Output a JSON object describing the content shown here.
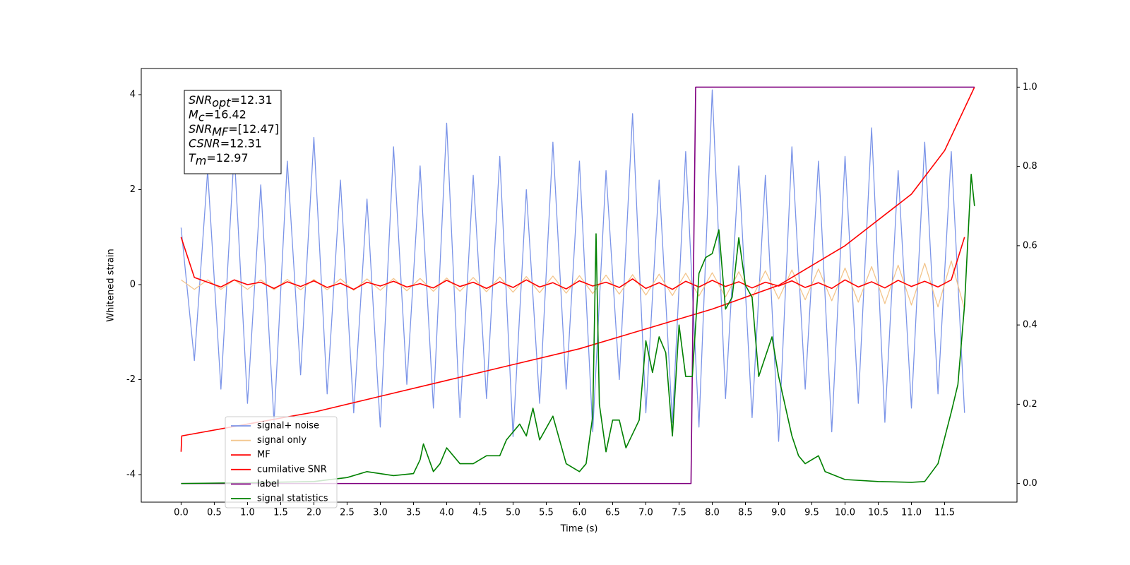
{
  "chart_data": {
    "type": "line",
    "xlabel": "Time (s)",
    "ylabel": "Whitened strain",
    "xlim": [
      -0.6,
      12.59
    ],
    "xticks": [
      {
        "value": 0,
        "label": "0.0"
      },
      0.5,
      {
        "value": 1,
        "label": "1.0"
      },
      1.5,
      {
        "value": 2,
        "label": "2.0"
      },
      2.5,
      {
        "value": 3,
        "label": "3.0"
      },
      3.5,
      {
        "value": 4,
        "label": "4.0"
      },
      4.5,
      {
        "value": 5,
        "label": "5.0"
      },
      5.5,
      {
        "value": 6,
        "label": "6.0"
      },
      6.5,
      {
        "value": 7,
        "label": "7.0"
      },
      7.5,
      {
        "value": 8,
        "label": "8.0"
      },
      8.5,
      {
        "value": 9,
        "label": "9.0"
      },
      9.5,
      {
        "value": 10,
        "label": "10.0"
      },
      10.5,
      {
        "value": 11,
        "label": "11.0"
      },
      11.5
    ],
    "ylim": [
      -4.58,
      4.55
    ],
    "yticks": [
      -4,
      -2,
      0,
      2,
      4
    ],
    "y2lim": [
      -0.047,
      1.047
    ],
    "y2ticks": [
      {
        "value": 0,
        "label": "0.0"
      },
      0.2,
      0.4,
      0.6,
      0.8,
      {
        "value": 1,
        "label": "1.0"
      }
    ],
    "legend_loc": "lower left",
    "annotations": [
      {
        "symbol": "SNR",
        "subscript": "opt",
        "text": "=12.31"
      },
      {
        "symbol": "M",
        "subscript": "c",
        "text": "=16.42"
      },
      {
        "symbol": "SNR",
        "subscript": "MF",
        "text": "=[12.47]"
      },
      {
        "symbol": "CSNR",
        "subscript": null,
        "text": "=12.31"
      },
      {
        "symbol": "T",
        "subscript": "m",
        "text": "=12.97"
      }
    ],
    "x": [
      0,
      0.2,
      0.4,
      0.6,
      0.8,
      1,
      1.2,
      1.4,
      1.6,
      1.8,
      2,
      2.2,
      2.4,
      2.6,
      2.8,
      3,
      3.2,
      3.4,
      3.6,
      3.8,
      4,
      4.2,
      4.4,
      4.6,
      4.8,
      5,
      5.2,
      5.4,
      5.6,
      5.8,
      6,
      6.2,
      6.4,
      6.6,
      6.8,
      7,
      7.2,
      7.4,
      7.6,
      7.8,
      8,
      8.2,
      8.4,
      8.6,
      8.8,
      9,
      9.2,
      9.4,
      9.6,
      9.8,
      10,
      10.2,
      10.4,
      10.6,
      10.8,
      11,
      11.2,
      11.4,
      11.6,
      11.8
    ],
    "series": [
      {
        "name": "signal+ noise",
        "color": "#7b94e8",
        "values": [
          1.2,
          -1.6,
          2.4,
          -2.2,
          2.8,
          -2.5,
          2.1,
          -2.9,
          2.6,
          -1.9,
          3.1,
          -2.3,
          2.2,
          -2.7,
          1.8,
          -3.0,
          2.9,
          -2.1,
          2.5,
          -2.6,
          3.4,
          -2.8,
          2.3,
          -2.4,
          2.7,
          -3.2,
          2.0,
          -2.5,
          3.0,
          -2.2,
          2.6,
          -3.1,
          2.4,
          -2.0,
          3.6,
          -2.7,
          2.2,
          -2.9,
          2.8,
          -3.0,
          4.1,
          -2.4,
          2.5,
          -2.8,
          2.3,
          -3.3,
          2.9,
          -2.2,
          2.6,
          -3.1,
          2.7,
          -2.5,
          3.3,
          -2.9,
          2.4,
          -2.6,
          3.0,
          -2.3,
          2.8,
          -2.7
        ]
      },
      {
        "name": "signal only",
        "color": "#f3c58c",
        "values": [
          0.1,
          -0.1,
          0.1,
          -0.1,
          0.1,
          -0.1,
          0.1,
          -0.11,
          0.11,
          -0.11,
          0.11,
          -0.11,
          0.12,
          -0.12,
          0.12,
          -0.12,
          0.13,
          -0.13,
          0.13,
          -0.14,
          0.14,
          -0.14,
          0.15,
          -0.15,
          0.16,
          -0.16,
          0.17,
          -0.17,
          0.18,
          -0.18,
          0.19,
          -0.19,
          0.2,
          -0.2,
          0.21,
          -0.22,
          0.22,
          -0.23,
          0.24,
          -0.24,
          0.25,
          -0.26,
          0.27,
          -0.28,
          0.29,
          -0.3,
          0.31,
          -0.32,
          0.33,
          -0.34,
          0.35,
          -0.37,
          0.38,
          -0.4,
          0.41,
          -0.43,
          0.45,
          -0.47,
          0.5,
          -0.52
        ]
      },
      {
        "name": "MF",
        "color": "#ff0000",
        "values": [
          1.0,
          0.15,
          0.05,
          -0.05,
          0.1,
          0.0,
          0.05,
          -0.08,
          0.06,
          -0.04,
          0.08,
          -0.06,
          0.03,
          -0.1,
          0.05,
          -0.03,
          0.07,
          -0.05,
          0.02,
          -0.07,
          0.09,
          -0.04,
          0.05,
          -0.08,
          0.06,
          -0.06,
          0.1,
          -0.05,
          0.04,
          -0.09,
          0.08,
          -0.03,
          0.05,
          -0.06,
          0.12,
          -0.08,
          0.04,
          -0.1,
          0.07,
          -0.05,
          0.09,
          -0.04,
          0.06,
          -0.07,
          0.05,
          -0.03,
          0.08,
          -0.06,
          0.04,
          -0.08,
          0.1,
          -0.05,
          0.06,
          -0.07,
          0.09,
          -0.04,
          0.07,
          -0.05,
          0.1,
          1.0
        ]
      },
      {
        "name": "cumilative SNR",
        "color": "#ff0000",
        "axis": "y2",
        "x": [
          0,
          0.01,
          1,
          2,
          3,
          4,
          5,
          6,
          7,
          8,
          9,
          10,
          11,
          11.5,
          11.95
        ],
        "values": [
          0.08,
          0.12,
          0.15,
          0.18,
          0.22,
          0.26,
          0.3,
          0.34,
          0.39,
          0.44,
          0.5,
          0.6,
          0.73,
          0.84,
          1.0
        ]
      },
      {
        "name": "label",
        "color": "#800080",
        "axis": "y2",
        "x": [
          0,
          7.68,
          7.75,
          11.95
        ],
        "values": [
          0,
          0,
          1,
          1
        ]
      },
      {
        "name": "signal statistics",
        "color": "#008000",
        "axis": "y2",
        "x": [
          0,
          1,
          2,
          2.5,
          2.8,
          3.2,
          3.5,
          3.6,
          3.65,
          3.8,
          3.9,
          4.0,
          4.2,
          4.4,
          4.6,
          4.8,
          4.9,
          5.1,
          5.2,
          5.3,
          5.4,
          5.6,
          5.8,
          6.0,
          6.1,
          6.2,
          6.25,
          6.3,
          6.4,
          6.5,
          6.6,
          6.7,
          6.9,
          7.0,
          7.1,
          7.2,
          7.3,
          7.4,
          7.5,
          7.6,
          7.7,
          7.8,
          7.9,
          8.0,
          8.1,
          8.2,
          8.3,
          8.4,
          8.5,
          8.6,
          8.7,
          8.9,
          9.0,
          9.2,
          9.3,
          9.4,
          9.6,
          9.7,
          10,
          10.5,
          11,
          11.2,
          11.4,
          11.6,
          11.7,
          11.8,
          11.9,
          11.95
        ],
        "values": [
          0,
          0.002,
          0.005,
          0.015,
          0.03,
          0.02,
          0.025,
          0.06,
          0.1,
          0.03,
          0.05,
          0.09,
          0.05,
          0.05,
          0.07,
          0.07,
          0.11,
          0.15,
          0.12,
          0.19,
          0.11,
          0.17,
          0.05,
          0.03,
          0.05,
          0.17,
          0.63,
          0.2,
          0.08,
          0.16,
          0.16,
          0.09,
          0.16,
          0.36,
          0.28,
          0.37,
          0.33,
          0.12,
          0.4,
          0.27,
          0.27,
          0.53,
          0.57,
          0.58,
          0.64,
          0.44,
          0.47,
          0.62,
          0.5,
          0.47,
          0.27,
          0.37,
          0.27,
          0.12,
          0.07,
          0.05,
          0.07,
          0.03,
          0.01,
          0.005,
          0.003,
          0.005,
          0.05,
          0.18,
          0.25,
          0.45,
          0.78,
          0.7
        ]
      }
    ]
  }
}
